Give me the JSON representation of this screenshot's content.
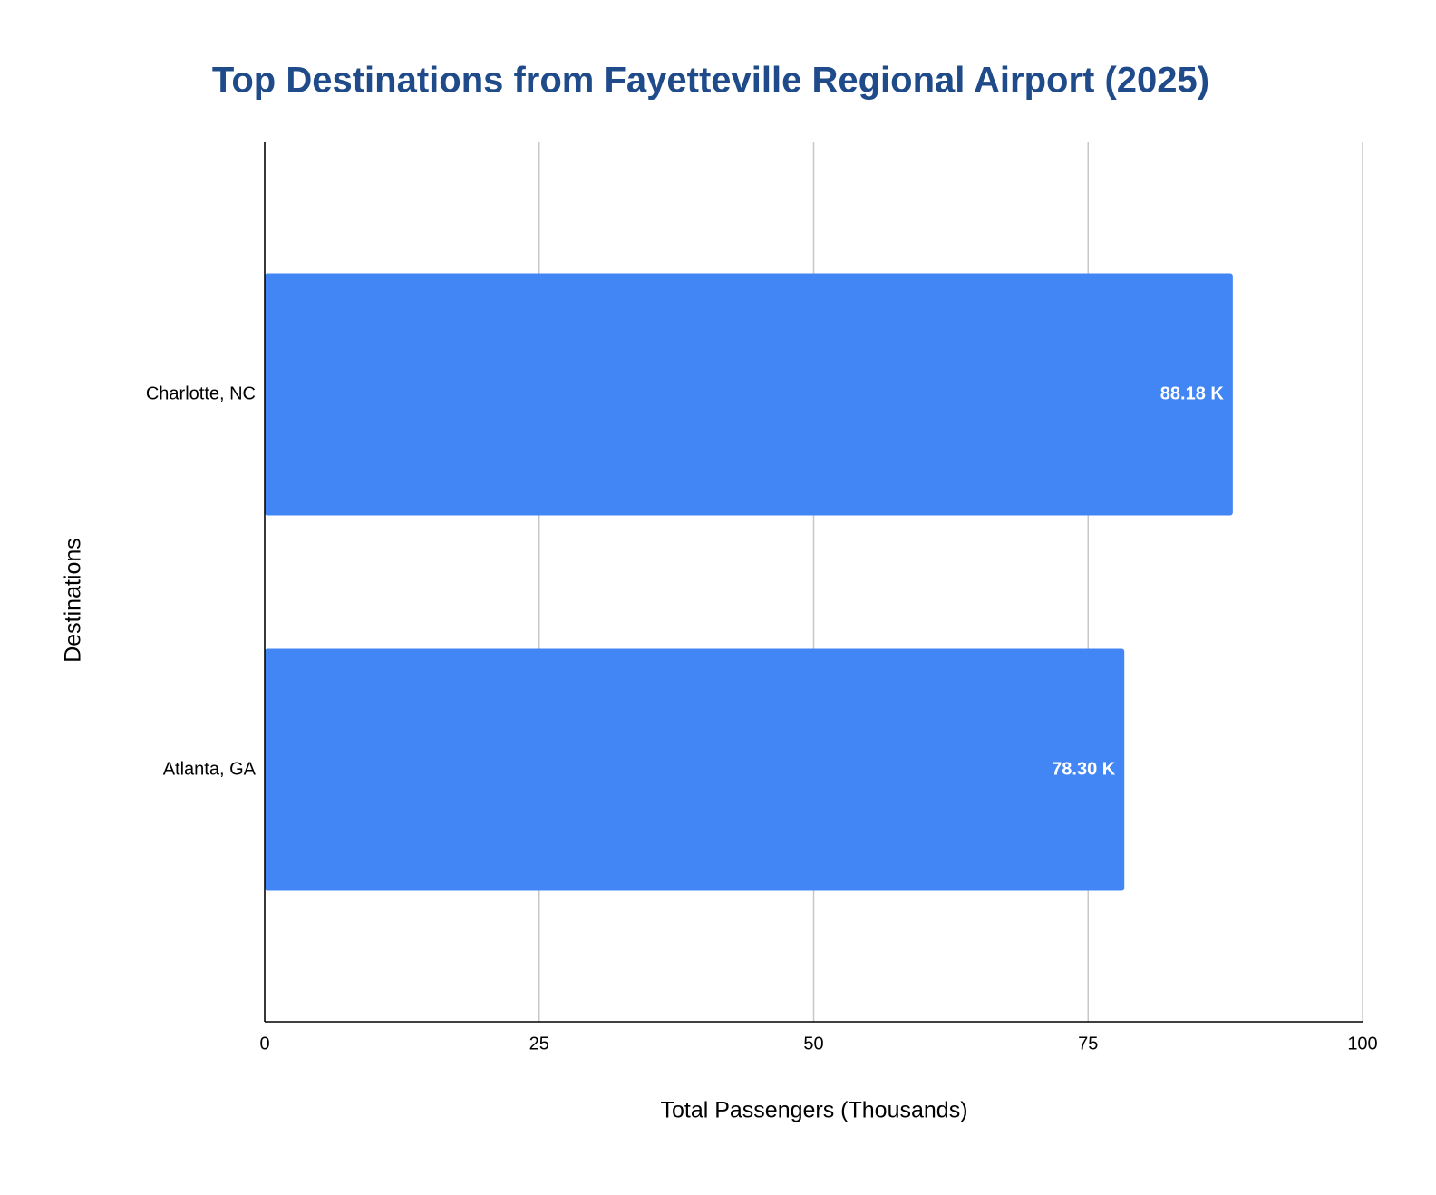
{
  "chart_data": {
    "type": "bar",
    "orientation": "horizontal",
    "title": "Top Destinations from Fayetteville Regional Airport (2025)",
    "x_label": "Total Passengers (Thousands)",
    "y_label": "Destinations",
    "categories": [
      "Charlotte, NC",
      "Atlanta, GA"
    ],
    "values": [
      88.18,
      78.3
    ],
    "value_labels": [
      "88.18 K",
      "78.30 K"
    ],
    "color": "#4285f4",
    "xlim": [
      0,
      100
    ],
    "xticks": [
      0,
      25,
      50,
      75,
      100
    ],
    "grid": true
  }
}
